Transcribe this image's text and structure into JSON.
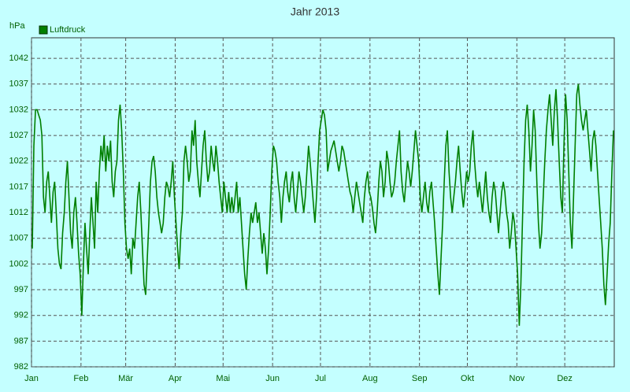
{
  "chart_data": {
    "type": "line",
    "title": "Jahr 2013",
    "y_label": "hPa",
    "xlim": [
      0,
      365
    ],
    "xticks": [
      {
        "value": 0,
        "label": "Jan"
      },
      {
        "value": 31,
        "label": "Feb"
      },
      {
        "value": 59,
        "label": "Mär"
      },
      {
        "value": 90,
        "label": "Apr"
      },
      {
        "value": 120,
        "label": "Mai"
      },
      {
        "value": 151,
        "label": "Jun"
      },
      {
        "value": 181,
        "label": "Jul"
      },
      {
        "value": 212,
        "label": "Aug"
      },
      {
        "value": 243,
        "label": "Sep"
      },
      {
        "value": 273,
        "label": "Okt"
      },
      {
        "value": 304,
        "label": "Nov"
      },
      {
        "value": 334,
        "label": "Dez"
      }
    ],
    "ylim": [
      982,
      1046
    ],
    "yticks": [
      982,
      987,
      992,
      997,
      1002,
      1007,
      1012,
      1017,
      1022,
      1027,
      1032,
      1037,
      1042
    ],
    "grid": true,
    "legend": "top-left",
    "series": [
      {
        "name": "Luftdruck",
        "color": "#007f00",
        "values": [
          1005,
          1025,
          1032,
          1032,
          1031,
          1030,
          1027,
          1015,
          1012,
          1018,
          1020,
          1015,
          1010,
          1016,
          1018,
          1012,
          1005,
          1002,
          1001,
          1008,
          1012,
          1018,
          1022,
          1015,
          1008,
          1005,
          1012,
          1015,
          1010,
          1004,
          1000,
          992,
          1002,
          1010,
          1005,
          1000,
          1008,
          1015,
          1010,
          1005,
          1018,
          1012,
          1020,
          1025,
          1022,
          1027,
          1020,
          1025,
          1022,
          1026,
          1018,
          1015,
          1020,
          1022,
          1030,
          1033,
          1028,
          1020,
          1010,
          1005,
          1003,
          1005,
          1000,
          1007,
          1005,
          1010,
          1015,
          1018,
          1012,
          1005,
          998,
          996,
          1003,
          1010,
          1018,
          1022,
          1023,
          1020,
          1015,
          1012,
          1010,
          1008,
          1010,
          1015,
          1018,
          1017,
          1015,
          1018,
          1022,
          1015,
          1010,
          1005,
          1001,
          1008,
          1012,
          1022,
          1025,
          1022,
          1018,
          1020,
          1028,
          1025,
          1030,
          1022,
          1018,
          1015,
          1020,
          1025,
          1028,
          1022,
          1018,
          1020,
          1025,
          1022,
          1020,
          1025,
          1022,
          1018,
          1015,
          1012,
          1018,
          1015,
          1012,
          1016,
          1012,
          1015,
          1012,
          1015,
          1018,
          1012,
          1015,
          1010,
          1005,
          1000,
          997,
          1003,
          1008,
          1012,
          1010,
          1012,
          1014,
          1010,
          1012,
          1008,
          1004,
          1008,
          1005,
          1000,
          1005,
          1012,
          1020,
          1025,
          1024,
          1022,
          1018,
          1015,
          1010,
          1015,
          1018,
          1020,
          1016,
          1014,
          1018,
          1020,
          1015,
          1012,
          1016,
          1020,
          1018,
          1015,
          1012,
          1015,
          1020,
          1025,
          1022,
          1018,
          1014,
          1010,
          1015,
          1022,
          1028,
          1030,
          1032,
          1031,
          1028,
          1020,
          1022,
          1024,
          1025,
          1026,
          1024,
          1022,
          1020,
          1022,
          1025,
          1024,
          1022,
          1020,
          1018,
          1016,
          1015,
          1012,
          1015,
          1018,
          1016,
          1014,
          1012,
          1010,
          1015,
          1018,
          1020,
          1016,
          1015,
          1013,
          1010,
          1008,
          1012,
          1018,
          1022,
          1020,
          1015,
          1018,
          1024,
          1022,
          1018,
          1015,
          1016,
          1018,
          1022,
          1025,
          1028,
          1020,
          1016,
          1014,
          1018,
          1022,
          1020,
          1017,
          1020,
          1024,
          1028,
          1025,
          1022,
          1015,
          1012,
          1015,
          1018,
          1014,
          1012,
          1016,
          1018,
          1014,
          1010,
          1005,
          1000,
          996,
          1003,
          1010,
          1018,
          1025,
          1028,
          1020,
          1015,
          1012,
          1015,
          1018,
          1022,
          1025,
          1020,
          1016,
          1013,
          1016,
          1020,
          1018,
          1020,
          1025,
          1028,
          1022,
          1018,
          1015,
          1018,
          1015,
          1012,
          1016,
          1020,
          1015,
          1012,
          1010,
          1015,
          1018,
          1016,
          1012,
          1008,
          1012,
          1016,
          1018,
          1016,
          1012,
          1010,
          1005,
          1008,
          1012,
          1010,
          1005,
          1000,
          990,
          998,
          1010,
          1022,
          1030,
          1033,
          1028,
          1020,
          1025,
          1032,
          1028,
          1018,
          1010,
          1005,
          1008,
          1015,
          1022,
          1028,
          1032,
          1035,
          1030,
          1025,
          1032,
          1036,
          1030,
          1022,
          1015,
          1012,
          1025,
          1035,
          1030,
          1020,
          1010,
          1005,
          1015,
          1025,
          1035,
          1037,
          1033,
          1030,
          1028,
          1030,
          1032,
          1028,
          1024,
          1020,
          1026,
          1028,
          1025,
          1020,
          1015,
          1010,
          1005,
          998,
          994,
          1000,
          1006,
          1010,
          1020,
          1028
        ]
      }
    ]
  }
}
